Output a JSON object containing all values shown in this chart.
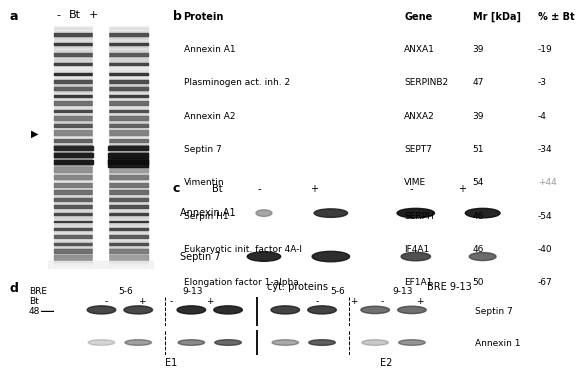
{
  "fig_width": 7.23,
  "fig_height": 3.62,
  "bg_color": "#ffffff",
  "panel_a_label": "a",
  "panel_b_label": "b",
  "panel_c_label": "c",
  "panel_d_label": "d",
  "gel_header_minus": "-",
  "gel_header_bt": "Bt",
  "gel_header_plus": "+",
  "table_header": [
    "Protein",
    "Gene",
    "Mr [kDa]",
    "% ± Bt"
  ],
  "table_rows": [
    [
      "Annexin A1",
      "ANXA1",
      "39",
      "-19"
    ],
    [
      "Plasminogen act. inh. 2",
      "SERPINB2",
      "47",
      "-3"
    ],
    [
      "Annexin A2",
      "ANXA2",
      "39",
      "-4"
    ],
    [
      "Septin 7",
      "SEPT7",
      "51",
      "-34"
    ],
    [
      "Vimentin",
      "VIME",
      "54",
      "+44"
    ],
    [
      "Serpin H1",
      "SERPH",
      "46",
      "-54"
    ],
    [
      "Eukaryotic init. factor 4A-I",
      "IF4A1",
      "46",
      "-40"
    ],
    [
      "Elongation factor 1-alpha",
      "EF1A1",
      "50",
      "-67"
    ]
  ],
  "vimentin_color": "#999999",
  "panel_c_bt_label": "Bt",
  "panel_c_row1_label": "Annexin A1",
  "panel_c_row2_label": "Septin 7",
  "panel_c_sub1": "cyt. proteins",
  "panel_c_sub2": "BRE 9-13",
  "panel_d_bre_label": "BRE",
  "panel_d_bt_label": "Bt",
  "panel_d_col1_label": "5-6",
  "panel_d_col2_label": "9-13",
  "panel_d_col3_label": "5-6",
  "panel_d_col4_label": "9-13",
  "panel_d_marker": "48",
  "panel_d_row1_label": "Septin 7",
  "panel_d_row2_label": "Annexin 1",
  "panel_d_e1": "E1",
  "panel_d_e2": "E2"
}
